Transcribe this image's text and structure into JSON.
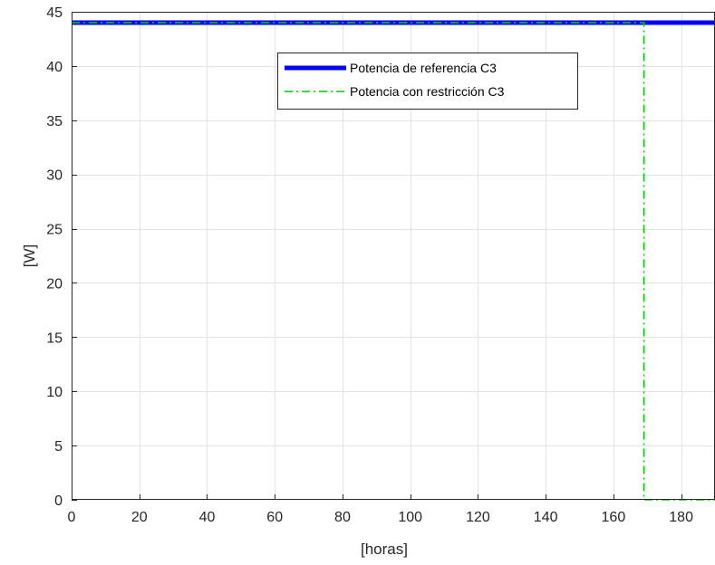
{
  "chart_data": {
    "type": "line",
    "xlabel": "[horas]",
    "ylabel": "[W]",
    "xlim": [
      0,
      190
    ],
    "ylim": [
      0,
      45
    ],
    "xticks": [
      0,
      20,
      40,
      60,
      80,
      100,
      120,
      140,
      160,
      180
    ],
    "yticks": [
      0,
      5,
      10,
      15,
      20,
      25,
      30,
      35,
      40,
      45
    ],
    "grid": true,
    "legend_position": "top-center",
    "series": [
      {
        "name": "Potencia de referencia C3",
        "color": "#0000ff",
        "style": "solid",
        "x": [
          0,
          190
        ],
        "y": [
          44,
          44
        ]
      },
      {
        "name": "Potencia con restricción C3",
        "color": "#00cc00",
        "style": "dash-dot",
        "x": [
          0,
          169,
          169,
          190
        ],
        "y": [
          44,
          44,
          0,
          0
        ]
      }
    ]
  }
}
